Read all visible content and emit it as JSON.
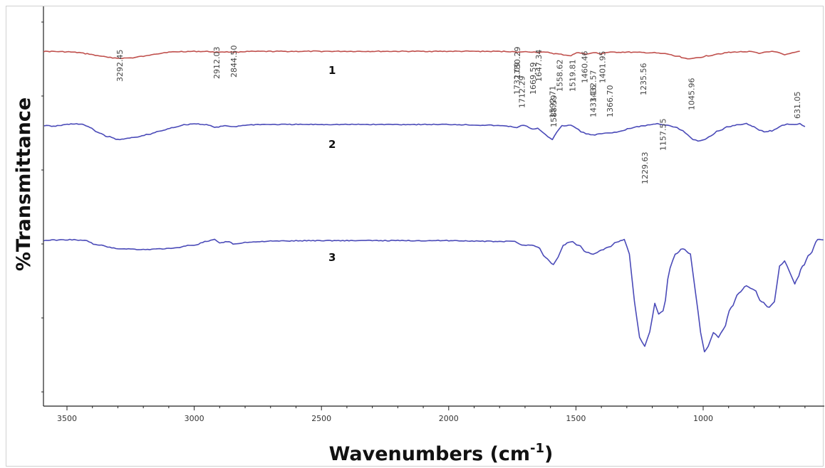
{
  "chart_data": {
    "type": "line",
    "title": "",
    "xlabel": "Wavenumbers (cm",
    "xlabel_superscript": "-1",
    "xlabel_suffix": ")",
    "ylabel": "%Transmittance",
    "xlim": [
      3600,
      500
    ],
    "x_reversed": true,
    "x_ticks": [
      "3500",
      "3000",
      "2500",
      "2000",
      "1500",
      "1000"
    ],
    "grid": false,
    "series": [
      {
        "name": "1",
        "color": "#c0504d",
        "peak_labels": [
          "3292.45",
          "2912.03",
          "2844.50",
          "1730.29",
          "1647.34",
          "1558.62",
          "1519.81",
          "1460.46",
          "1401.95",
          "1045.96"
        ],
        "points": [
          [
            3600,
            0.42
          ],
          [
            3560,
            0.4
          ],
          [
            3500,
            1.0
          ],
          [
            3460,
            2.0
          ],
          [
            3420,
            4.0
          ],
          [
            3380,
            7.0
          ],
          [
            3330,
            10.0
          ],
          [
            3292.45,
            11.0
          ],
          [
            3250,
            10.5
          ],
          [
            3200,
            8.0
          ],
          [
            3150,
            4.0
          ],
          [
            3100,
            1.5
          ],
          [
            3050,
            0.6
          ],
          [
            3000,
            0.3
          ],
          [
            2950,
            0.4
          ],
          [
            2912.03,
            1.5
          ],
          [
            2890,
            1.0
          ],
          [
            2844.5,
            1.5
          ],
          [
            2800,
            0.5
          ],
          [
            2700,
            0.3
          ],
          [
            2500,
            0.2
          ],
          [
            2000,
            0.2
          ],
          [
            1800,
            0.3
          ],
          [
            1750,
            0.5
          ],
          [
            1730.29,
            2.0
          ],
          [
            1715,
            1.0
          ],
          [
            1680,
            1.0
          ],
          [
            1647.34,
            1.5
          ],
          [
            1610,
            2.0
          ],
          [
            1580,
            4.0
          ],
          [
            1558.62,
            5.0
          ],
          [
            1540,
            6.0
          ],
          [
            1519.81,
            7.0
          ],
          [
            1505,
            4.0
          ],
          [
            1490,
            2.0
          ],
          [
            1475,
            3.0
          ],
          [
            1460.46,
            5.0
          ],
          [
            1440,
            3.0
          ],
          [
            1420,
            2.5
          ],
          [
            1401.95,
            4.0
          ],
          [
            1380,
            2.0
          ],
          [
            1340,
            1.5
          ],
          [
            1300,
            1.5
          ],
          [
            1250,
            2.0
          ],
          [
            1200,
            2.5
          ],
          [
            1150,
            4.0
          ],
          [
            1100,
            8.0
          ],
          [
            1070,
            11.0
          ],
          [
            1045.96,
            12.0
          ],
          [
            1020,
            10.0
          ],
          [
            980,
            7.0
          ],
          [
            940,
            4.0
          ],
          [
            900,
            2.0
          ],
          [
            860,
            1.0
          ],
          [
            820,
            0.5
          ],
          [
            800,
            1.5
          ],
          [
            780,
            4.0
          ],
          [
            760,
            1.5
          ],
          [
            740,
            0.5
          ],
          [
            720,
            1.0
          ],
          [
            700,
            3.0
          ],
          [
            680,
            6.0
          ],
          [
            660,
            4.0
          ],
          [
            640,
            2.0
          ],
          [
            620,
            0.0
          ]
        ]
      },
      {
        "name": "2",
        "color": "#4a4ab8",
        "peak_labels": [
          "1732.09",
          "1669.59",
          "1592.71",
          "1433.16",
          "1366.70",
          "1235.56"
        ],
        "points": [
          [
            3600,
            3.0
          ],
          [
            3580,
            2.0
          ],
          [
            3560,
            4.0
          ],
          [
            3530,
            2.5
          ],
          [
            3500,
            1.0
          ],
          [
            3470,
            0.0
          ],
          [
            3440,
            1.0
          ],
          [
            3410,
            5.0
          ],
          [
            3380,
            12.0
          ],
          [
            3340,
            18.0
          ],
          [
            3300,
            22.0
          ],
          [
            3270,
            21.0
          ],
          [
            3230,
            19.0
          ],
          [
            3180,
            15.0
          ],
          [
            3130,
            10.0
          ],
          [
            3080,
            5.0
          ],
          [
            3040,
            1.5
          ],
          [
            3000,
            0.0
          ],
          [
            2960,
            1.0
          ],
          [
            2912,
            5.0
          ],
          [
            2880,
            3.0
          ],
          [
            2844,
            4.0
          ],
          [
            2800,
            2.0
          ],
          [
            2750,
            1.0
          ],
          [
            2600,
            1.0
          ],
          [
            2000,
            1.0
          ],
          [
            1850,
            2.0
          ],
          [
            1780,
            3.0
          ],
          [
            1750,
            4.0
          ],
          [
            1732.09,
            6.0
          ],
          [
            1715,
            2.0
          ],
          [
            1700,
            3.0
          ],
          [
            1669.59,
            8.0
          ],
          [
            1650,
            6.0
          ],
          [
            1630,
            12.0
          ],
          [
            1610,
            18.0
          ],
          [
            1592.71,
            22.0
          ],
          [
            1575,
            12.0
          ],
          [
            1555,
            3.0
          ],
          [
            1520,
            2.0
          ],
          [
            1500,
            6.0
          ],
          [
            1480,
            11.0
          ],
          [
            1460,
            14.0
          ],
          [
            1433.16,
            16.0
          ],
          [
            1400,
            14.0
          ],
          [
            1366.7,
            13.0
          ],
          [
            1330,
            11.0
          ],
          [
            1290,
            7.0
          ],
          [
            1260,
            4.0
          ],
          [
            1235.56,
            3.0
          ],
          [
            1210,
            1.5
          ],
          [
            1180,
            0.0
          ],
          [
            1150,
            1.5
          ],
          [
            1110,
            5.0
          ],
          [
            1080,
            10.0
          ],
          [
            1060,
            16.0
          ],
          [
            1040,
            22.0
          ],
          [
            1020,
            24.0
          ],
          [
            1000,
            23.0
          ],
          [
            970,
            17.0
          ],
          [
            940,
            10.0
          ],
          [
            900,
            4.0
          ],
          [
            860,
            1.0
          ],
          [
            830,
            0.0
          ],
          [
            800,
            4.0
          ],
          [
            780,
            9.0
          ],
          [
            760,
            11.0
          ],
          [
            730,
            10.0
          ],
          [
            710,
            7.0
          ],
          [
            690,
            2.0
          ],
          [
            670,
            0.5
          ],
          [
            640,
            1.0
          ],
          [
            620,
            0.0
          ],
          [
            600,
            4.0
          ]
        ]
      },
      {
        "name": "3",
        "color": "#4a4ab8",
        "peak_labels": [
          "1712.29",
          "1588.59",
          "1432.57",
          "1229.63",
          "1157.55",
          "631.05"
        ],
        "points": [
          [
            3600,
            0.5
          ],
          [
            3550,
            0.2
          ],
          [
            3480,
            0.0
          ],
          [
            3430,
            0.5
          ],
          [
            3380,
            3.0
          ],
          [
            3300,
            5.0
          ],
          [
            3200,
            5.5
          ],
          [
            3100,
            5.0
          ],
          [
            3000,
            3.0
          ],
          [
            2950,
            1.0
          ],
          [
            2920,
            0.0
          ],
          [
            2900,
            2.0
          ],
          [
            2870,
            1.0
          ],
          [
            2840,
            2.5
          ],
          [
            2800,
            1.5
          ],
          [
            2700,
            0.8
          ],
          [
            2500,
            0.5
          ],
          [
            2000,
            0.5
          ],
          [
            1800,
            1.0
          ],
          [
            1740,
            1.0
          ],
          [
            1712.29,
            3.0
          ],
          [
            1680,
            3.0
          ],
          [
            1650,
            4.0
          ],
          [
            1620,
            10.0
          ],
          [
            1588.59,
            14.0
          ],
          [
            1570,
            10.0
          ],
          [
            1550,
            3.0
          ],
          [
            1520,
            1.0
          ],
          [
            1490,
            3.0
          ],
          [
            1460,
            7.0
          ],
          [
            1432.57,
            8.0
          ],
          [
            1400,
            6.0
          ],
          [
            1370,
            4.0
          ],
          [
            1340,
            1.5
          ],
          [
            1310,
            0.0
          ],
          [
            1290,
            8.0
          ],
          [
            1270,
            35.0
          ],
          [
            1250,
            55.0
          ],
          [
            1229.63,
            60.0
          ],
          [
            1210,
            52.0
          ],
          [
            1190,
            36.0
          ],
          [
            1175,
            42.0
          ],
          [
            1157.55,
            40.0
          ],
          [
            1130,
            16.0
          ],
          [
            1110,
            8.0
          ],
          [
            1080,
            5.0
          ],
          [
            1050,
            8.0
          ],
          [
            1030,
            30.0
          ],
          [
            1010,
            52.0
          ],
          [
            995,
            63.0
          ],
          [
            980,
            60.0
          ],
          [
            960,
            52.0
          ],
          [
            940,
            55.0
          ],
          [
            920,
            50.0
          ],
          [
            890,
            38.0
          ],
          [
            860,
            30.0
          ],
          [
            830,
            26.0
          ],
          [
            800,
            28.0
          ],
          [
            770,
            35.0
          ],
          [
            740,
            38.0
          ],
          [
            720,
            35.0
          ],
          [
            700,
            15.0
          ],
          [
            680,
            12.0
          ],
          [
            660,
            18.0
          ],
          [
            640,
            25.0
          ],
          [
            631.05,
            22.0
          ],
          [
            610,
            15.0
          ],
          [
            580,
            8.0
          ],
          [
            550,
            0.0
          ],
          [
            520,
            0.0
          ],
          [
            500,
            0.0
          ]
        ]
      }
    ],
    "curve_baselines": [
      0.0,
      0.0,
      0.0
    ]
  }
}
